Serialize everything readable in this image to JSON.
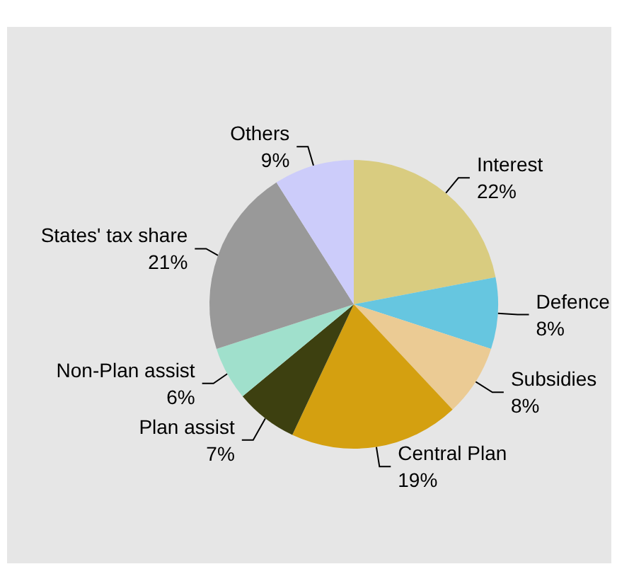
{
  "chart_data": {
    "type": "pie",
    "categories": [
      "Interest",
      "Defence",
      "Subsidies",
      "Central Plan",
      "Plan assist",
      "Non-Plan assist",
      "States' tax share",
      "Others"
    ],
    "values": [
      22,
      8,
      8,
      19,
      7,
      6,
      21,
      9
    ],
    "colors": [
      "#d9cc80",
      "#66c6e0",
      "#ebcb94",
      "#d4a010",
      "#3d4010",
      "#a0e0cc",
      "#999999",
      "#ccccfa"
    ],
    "value_labels": [
      "22%",
      "8%",
      "8%",
      "19%",
      "7%",
      "6%",
      "21%",
      "9%"
    ]
  }
}
